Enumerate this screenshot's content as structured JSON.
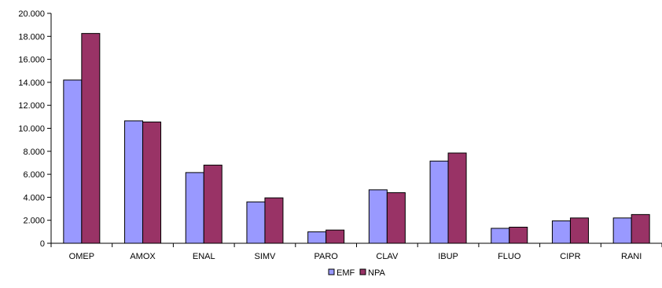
{
  "chart_data": {
    "type": "bar",
    "categories": [
      "OMEP",
      "AMOX",
      "ENAL",
      "SIMV",
      "PARO",
      "CLAV",
      "IBUP",
      "FLUO",
      "CIPR",
      "RANI"
    ],
    "series": [
      {
        "name": "EMF",
        "color": "#9999ff",
        "values": [
          14200,
          10650,
          6150,
          3600,
          1000,
          4650,
          7150,
          1300,
          1950,
          2200
        ]
      },
      {
        "name": "NPA",
        "color": "#993366",
        "values": [
          18250,
          10550,
          6800,
          3950,
          1150,
          4400,
          7850,
          1400,
          2200,
          2500
        ]
      }
    ],
    "ylim": [
      0,
      20000
    ],
    "y_ticks": [
      "0",
      "2.000",
      "4.000",
      "6.000",
      "8.000",
      "10.000",
      "12.000",
      "14.000",
      "16.000",
      "18.000",
      "20.000"
    ],
    "y_tick_values": [
      0,
      2000,
      4000,
      6000,
      8000,
      10000,
      12000,
      14000,
      16000,
      18000,
      20000
    ],
    "grid": false,
    "legend_position": "bottom-center",
    "title": "",
    "xlabel": "",
    "ylabel": ""
  }
}
